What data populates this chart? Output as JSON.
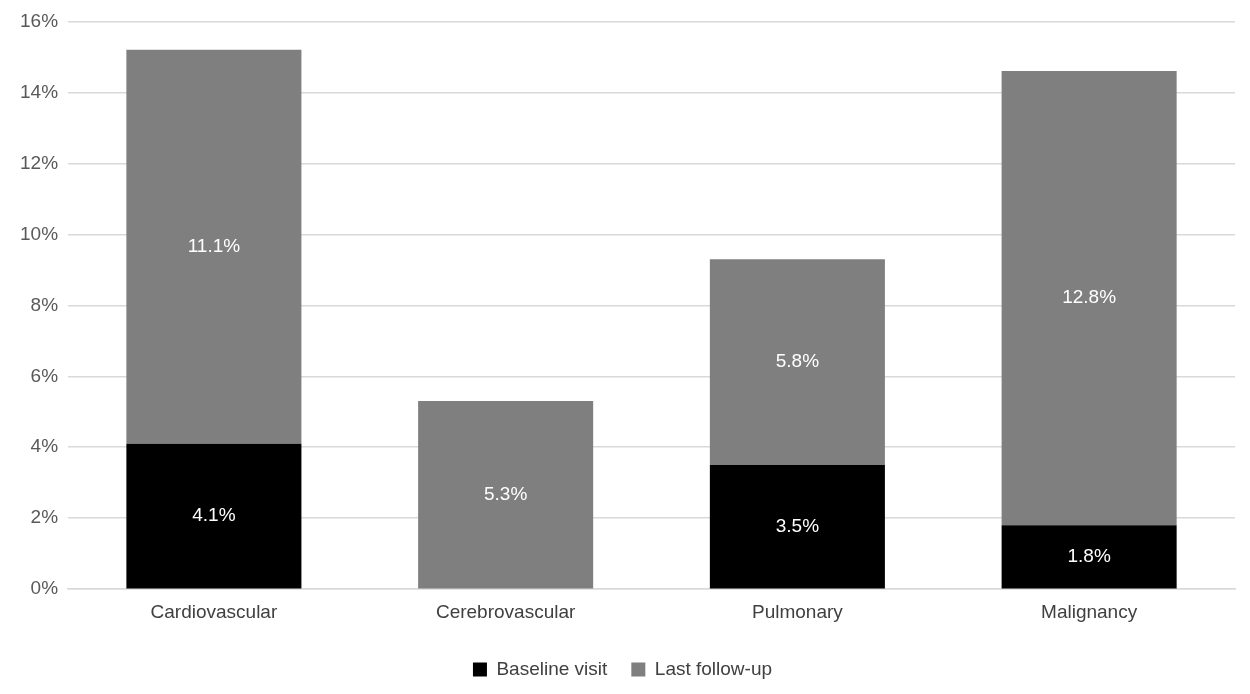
{
  "chart_data": {
    "type": "bar",
    "stacked": true,
    "categories": [
      "Cardiovascular",
      "Cerebrovascular",
      "Pulmonary",
      "Malignancy"
    ],
    "series": [
      {
        "name": "Baseline visit",
        "color": "#000000",
        "values": [
          4.1,
          null,
          3.5,
          1.8
        ],
        "value_labels": [
          "4.1%",
          null,
          "3.5%",
          "1.8%"
        ]
      },
      {
        "name": "Last follow-up",
        "color": "#7f7f7f",
        "values": [
          11.1,
          5.3,
          5.8,
          12.8
        ],
        "value_labels": [
          "11.1%",
          "5.3%",
          "5.8%",
          "12.8%"
        ]
      }
    ],
    "ylim": [
      0,
      16
    ],
    "yticks": [
      {
        "value": 0,
        "label": "0%"
      },
      {
        "value": 2,
        "label": "2%"
      },
      {
        "value": 4,
        "label": "4%"
      },
      {
        "value": 6,
        "label": "6%"
      },
      {
        "value": 8,
        "label": "8%"
      },
      {
        "value": 10,
        "label": "10%"
      },
      {
        "value": 12,
        "label": "12%"
      },
      {
        "value": 14,
        "label": "14%"
      },
      {
        "value": 16,
        "label": "16%"
      }
    ],
    "grid": "y",
    "legend": "bottom"
  }
}
